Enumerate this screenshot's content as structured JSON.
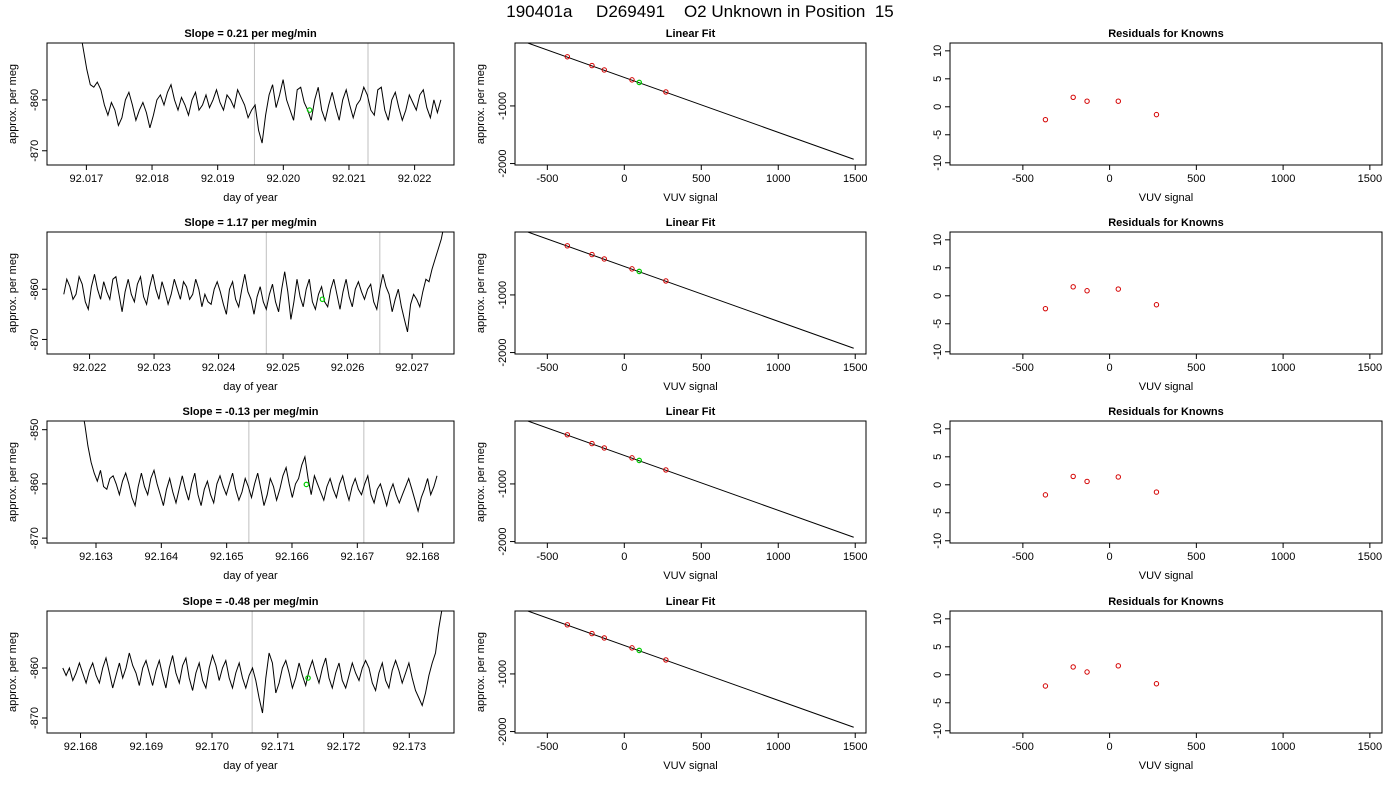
{
  "title": "190401a     D269491    O2 Unknown in Position  15",
  "colors": {
    "trace": "#000000",
    "frame": "#000000",
    "marker_line": "#bfbfbf",
    "highlight": "#00cc00",
    "known": "#d40000"
  },
  "chart_data": [
    {
      "type": "line",
      "row": 0,
      "col": 0,
      "title": "Slope =  0.21  per meg/min",
      "xlabel": "day of year",
      "ylabel": "approx. per meg",
      "xlim": [
        92.0164,
        92.0226
      ],
      "ylim": [
        -872.8,
        -848.8
      ],
      "xticks": [
        "92.017",
        "92.018",
        "92.019",
        "92.020",
        "92.021",
        "92.022"
      ],
      "yticks": [
        "-860",
        "-870"
      ],
      "markers": [
        92.01956,
        92.02129
      ],
      "point": [
        92.0204,
        -862.0
      ],
      "x_start": 92.0169,
      "x_end": 92.0224,
      "y": [
        -846,
        -850,
        -854,
        -857,
        -857.5,
        -856.5,
        -858,
        -861,
        -863,
        -860.5,
        -862,
        -865,
        -863.5,
        -860,
        -858.5,
        -861,
        -864,
        -862,
        -860.5,
        -862.5,
        -865.5,
        -863,
        -860,
        -859,
        -861,
        -858.5,
        -857,
        -860,
        -862,
        -859.5,
        -861,
        -863,
        -860,
        -858.5,
        -862,
        -861,
        -859,
        -861.5,
        -860,
        -858,
        -860.5,
        -862,
        -859,
        -860,
        -861.5,
        -858,
        -859.5,
        -861,
        -863.5,
        -862,
        -861,
        -866,
        -868.5,
        -863,
        -859,
        -857,
        -861.5,
        -859,
        -856,
        -860,
        -862,
        -864,
        -858,
        -857.5,
        -860.5,
        -862,
        -864,
        -860,
        -857.5,
        -862,
        -864,
        -861,
        -858.5,
        -861.5,
        -864,
        -860,
        -858,
        -861,
        -863.5,
        -861,
        -860,
        -857.5,
        -859,
        -862,
        -863,
        -858,
        -857.5,
        -862,
        -864,
        -860,
        -858.5,
        -861.5,
        -864,
        -862,
        -859,
        -860.5,
        -862,
        -859,
        -858,
        -861.5,
        -863.5,
        -860,
        -862.5,
        -860
      ]
    },
    {
      "type": "scatter",
      "row": 0,
      "col": 1,
      "title": "Linear Fit",
      "xlabel": "VUV signal",
      "ylabel": "approx. per meg",
      "xlim": [
        -710,
        1570
      ],
      "ylim": [
        -2025,
        92
      ],
      "xticks": [
        "-500",
        "0",
        "500",
        "1000",
        "1500"
      ],
      "yticks": [
        "-1000",
        "-2000"
      ],
      "line": [
        [
          -640,
          104
        ],
        [
          1490,
          -1925
        ]
      ],
      "knowns": [
        [
          -370,
          -147
        ],
        [
          -210,
          -300
        ],
        [
          -130,
          -376
        ],
        [
          50,
          -548
        ],
        [
          270,
          -757
        ]
      ],
      "unknown": [
        97,
        -592
      ]
    },
    {
      "type": "scatter",
      "row": 0,
      "col": 2,
      "title": "Residuals for Knowns",
      "xlabel": "VUV signal",
      "ylabel": "",
      "xlim": [
        -920,
        1570
      ],
      "ylim": [
        -10.4,
        11.4
      ],
      "xticks": [
        "-500",
        "0",
        "500",
        "1000",
        "1500"
      ],
      "yticks": [
        "-10",
        "-5",
        "0",
        "5",
        "10"
      ],
      "points": [
        [
          -370,
          -2.3
        ],
        [
          -210,
          1.7
        ],
        [
          -130,
          1.0
        ],
        [
          50,
          1.0
        ],
        [
          270,
          -1.4
        ]
      ]
    },
    {
      "type": "line",
      "row": 1,
      "col": 0,
      "title": "Slope =  1.17  per meg/min",
      "xlabel": "day of year",
      "ylabel": "approx. per meg",
      "xlim": [
        92.02134,
        92.02765
      ],
      "ylim": [
        -872.9,
        -848.6
      ],
      "xticks": [
        "92.022",
        "92.023",
        "92.024",
        "92.025",
        "92.026",
        "92.027"
      ],
      "yticks": [
        "-860",
        "-870"
      ],
      "markers": [
        92.02474,
        92.0265
      ],
      "point": [
        92.02561,
        -862.0
      ],
      "x_start": 92.0216,
      "x_end": 92.0275,
      "y": [
        -861,
        -858,
        -859.5,
        -862,
        -861,
        -857.5,
        -859,
        -862.5,
        -864,
        -859.5,
        -857,
        -860,
        -862,
        -858.5,
        -860.5,
        -862,
        -858,
        -857.5,
        -861,
        -864.5,
        -860.5,
        -858,
        -861,
        -862.5,
        -859,
        -857.5,
        -861.5,
        -863,
        -859.5,
        -857,
        -860,
        -862,
        -858.5,
        -860.5,
        -863,
        -861,
        -858,
        -860,
        -862,
        -858.5,
        -859.5,
        -862,
        -861,
        -858,
        -860,
        -863.5,
        -861,
        -862.5,
        -863,
        -860,
        -858.5,
        -860.5,
        -863,
        -865,
        -860,
        -858.5,
        -862,
        -863.5,
        -860,
        -857,
        -860.5,
        -862,
        -865,
        -861.5,
        -859.5,
        -862.5,
        -864,
        -861,
        -859,
        -862.5,
        -864.5,
        -860,
        -856.5,
        -860.5,
        -866,
        -862.5,
        -858,
        -861.5,
        -863.5,
        -860,
        -858,
        -862.5,
        -864,
        -861,
        -859.5,
        -862.5,
        -863.5,
        -860,
        -858,
        -861,
        -864,
        -860.5,
        -858,
        -861.5,
        -863.5,
        -860,
        -858.5,
        -860.5,
        -862,
        -860,
        -859,
        -862.5,
        -864,
        -860,
        -857,
        -859.5,
        -861,
        -864.5,
        -862,
        -860,
        -863.5,
        -866,
        -868.5,
        -863,
        -861,
        -862,
        -863.5,
        -860.5,
        -858,
        -858.5,
        -856,
        -854,
        -852,
        -850,
        -847
      ]
    },
    {
      "type": "scatter",
      "row": 1,
      "col": 1,
      "title": "Linear Fit",
      "xlabel": "VUV signal",
      "ylabel": "approx. per meg",
      "xlim": [
        -710,
        1570
      ],
      "ylim": [
        -2025,
        92
      ],
      "xticks": [
        "-500",
        "0",
        "500",
        "1000",
        "1500"
      ],
      "yticks": [
        "-1000",
        "-2000"
      ],
      "line": [
        [
          -640,
          104
        ],
        [
          1490,
          -1925
        ]
      ],
      "knowns": [
        [
          -370,
          -148
        ],
        [
          -210,
          -300
        ],
        [
          -130,
          -376
        ],
        [
          50,
          -548
        ],
        [
          270,
          -757
        ]
      ],
      "unknown": [
        97,
        -592
      ]
    },
    {
      "type": "scatter",
      "row": 1,
      "col": 2,
      "title": "Residuals for Knowns",
      "xlabel": "VUV signal",
      "ylabel": "",
      "xlim": [
        -920,
        1570
      ],
      "ylim": [
        -10.4,
        11.4
      ],
      "xticks": [
        "-500",
        "0",
        "500",
        "1000",
        "1500"
      ],
      "yticks": [
        "-10",
        "-5",
        "0",
        "5",
        "10"
      ],
      "points": [
        [
          -370,
          -2.3
        ],
        [
          -210,
          1.6
        ],
        [
          -130,
          0.9
        ],
        [
          50,
          1.2
        ],
        [
          270,
          -1.6
        ]
      ]
    },
    {
      "type": "line",
      "row": 2,
      "col": 0,
      "title": "Slope =  -0.13  per meg/min",
      "xlabel": "day of year",
      "ylabel": "approx. per meg",
      "xlim": [
        92.16225,
        92.16848
      ],
      "ylim": [
        -870.9,
        -848.4
      ],
      "xticks": [
        "92.163",
        "92.164",
        "92.165",
        "92.166",
        "92.167",
        "92.168"
      ],
      "yticks": [
        "-850",
        "-860",
        "-870"
      ],
      "markers": [
        92.16534,
        92.1671
      ],
      "point": [
        92.16622,
        -860.1
      ],
      "x_start": 92.16278,
      "x_end": 92.16822,
      "y": [
        -846,
        -849,
        -853,
        -856,
        -858,
        -859.5,
        -857.5,
        -860.5,
        -861,
        -859,
        -858.5,
        -860,
        -862,
        -859.5,
        -858,
        -860,
        -862.5,
        -864,
        -860.5,
        -858,
        -860.5,
        -862,
        -859,
        -857.5,
        -860,
        -862,
        -864,
        -861,
        -859,
        -861.5,
        -863.5,
        -861,
        -858.5,
        -861,
        -863,
        -860,
        -858,
        -862,
        -864,
        -861,
        -859.5,
        -862,
        -863.5,
        -860,
        -858.5,
        -860.5,
        -862,
        -860,
        -858,
        -861,
        -863,
        -861.5,
        -859,
        -860.5,
        -862.5,
        -860,
        -858,
        -861,
        -864,
        -862,
        -859,
        -860.5,
        -863,
        -861,
        -858.5,
        -857,
        -860,
        -862.5,
        -860,
        -859,
        -856.5,
        -855,
        -859,
        -862,
        -858.5,
        -860,
        -861.5,
        -863,
        -860.5,
        -859,
        -861,
        -862.5,
        -860,
        -858.5,
        -861,
        -863,
        -860.5,
        -859,
        -861,
        -862,
        -860,
        -858.5,
        -862,
        -863.5,
        -861,
        -860,
        -862,
        -864,
        -861.5,
        -860,
        -862,
        -863.5,
        -862,
        -860.5,
        -859,
        -861,
        -863,
        -865,
        -862.5,
        -861,
        -859,
        -862,
        -860.5,
        -858.5
      ]
    },
    {
      "type": "scatter",
      "row": 2,
      "col": 1,
      "title": "Linear Fit",
      "xlabel": "VUV signal",
      "ylabel": "approx. per meg",
      "xlim": [
        -710,
        1570
      ],
      "ylim": [
        -2025,
        92
      ],
      "xticks": [
        "-500",
        "0",
        "500",
        "1000",
        "1500"
      ],
      "yticks": [
        "-1000",
        "-2000"
      ],
      "line": [
        [
          -640,
          104
        ],
        [
          1490,
          -1925
        ]
      ],
      "knowns": [
        [
          -370,
          -147
        ],
        [
          -210,
          -300
        ],
        [
          -130,
          -376
        ],
        [
          50,
          -548
        ],
        [
          270,
          -757
        ]
      ],
      "unknown": [
        97,
        -592
      ]
    },
    {
      "type": "scatter",
      "row": 2,
      "col": 2,
      "title": "Residuals for Knowns",
      "xlabel": "VUV signal",
      "ylabel": "",
      "xlim": [
        -920,
        1570
      ],
      "ylim": [
        -10.4,
        11.4
      ],
      "xticks": [
        "-500",
        "0",
        "500",
        "1000",
        "1500"
      ],
      "yticks": [
        "-10",
        "-5",
        "0",
        "5",
        "10"
      ],
      "points": [
        [
          -370,
          -1.8
        ],
        [
          -210,
          1.5
        ],
        [
          -130,
          0.6
        ],
        [
          50,
          1.4
        ],
        [
          270,
          -1.3
        ]
      ]
    },
    {
      "type": "line",
      "row": 3,
      "col": 0,
      "title": "Slope =  -0.48  per meg/min",
      "xlabel": "day of year",
      "ylabel": "approx. per meg",
      "xlim": [
        92.16749,
        92.17368
      ],
      "ylim": [
        -873.0,
        -848.6
      ],
      "xticks": [
        "92.168",
        "92.169",
        "92.170",
        "92.171",
        "92.172",
        "92.173"
      ],
      "yticks": [
        "-860",
        "-870"
      ],
      "markers": [
        92.17061,
        92.17231
      ],
      "point": [
        92.17146,
        -862.0
      ],
      "x_start": 92.16773,
      "x_end": 92.1735,
      "y": [
        -860,
        -861.5,
        -860,
        -862.5,
        -861,
        -859,
        -861,
        -863,
        -860.5,
        -859,
        -861.5,
        -863,
        -860,
        -858,
        -861,
        -864,
        -861.5,
        -859,
        -862,
        -860,
        -857,
        -859.5,
        -861,
        -863.5,
        -860,
        -858.5,
        -861,
        -863.5,
        -860.5,
        -858.5,
        -861.5,
        -864,
        -860,
        -857.5,
        -861,
        -863,
        -859.5,
        -858,
        -862,
        -864.5,
        -861,
        -859,
        -862.5,
        -864,
        -860,
        -857.5,
        -859.5,
        -862.5,
        -860,
        -858.5,
        -862,
        -864,
        -861,
        -859,
        -862,
        -864,
        -861.5,
        -860,
        -862.5,
        -866,
        -869,
        -862,
        -857,
        -859,
        -865,
        -863,
        -860,
        -858.5,
        -861,
        -864,
        -862,
        -859,
        -861.5,
        -863.5,
        -860.5,
        -858.5,
        -861,
        -863,
        -860,
        -858,
        -862,
        -864,
        -861,
        -859,
        -862.5,
        -864,
        -861.5,
        -859,
        -861,
        -862.5,
        -860,
        -858.5,
        -860,
        -863,
        -864.5,
        -861,
        -859,
        -862.5,
        -864,
        -860.5,
        -858.5,
        -860.5,
        -863,
        -861,
        -859,
        -862,
        -864.5,
        -866,
        -867.5,
        -865,
        -861.5,
        -859,
        -857,
        -852,
        -848
      ]
    },
    {
      "type": "scatter",
      "row": 3,
      "col": 1,
      "title": "Linear Fit",
      "xlabel": "VUV signal",
      "ylabel": "approx. per meg",
      "xlim": [
        -710,
        1570
      ],
      "ylim": [
        -2025,
        92
      ],
      "xticks": [
        "-500",
        "0",
        "500",
        "1000",
        "1500"
      ],
      "yticks": [
        "-1000",
        "-2000"
      ],
      "line": [
        [
          -640,
          104
        ],
        [
          1490,
          -1925
        ]
      ],
      "knowns": [
        [
          -370,
          -148
        ],
        [
          -210,
          -300
        ],
        [
          -130,
          -376
        ],
        [
          50,
          -548
        ],
        [
          270,
          -757
        ]
      ],
      "unknown": [
        97,
        -592
      ]
    },
    {
      "type": "scatter",
      "row": 3,
      "col": 2,
      "title": "Residuals for Knowns",
      "xlabel": "VUV signal",
      "ylabel": "",
      "xlim": [
        -920,
        1570
      ],
      "ylim": [
        -10.4,
        11.4
      ],
      "xticks": [
        "-500",
        "0",
        "500",
        "1000",
        "1500"
      ],
      "yticks": [
        "-10",
        "-5",
        "0",
        "5",
        "10"
      ],
      "points": [
        [
          -370,
          -2.0
        ],
        [
          -210,
          1.4
        ],
        [
          -130,
          0.5
        ],
        [
          50,
          1.6
        ],
        [
          270,
          -1.6
        ]
      ]
    }
  ]
}
